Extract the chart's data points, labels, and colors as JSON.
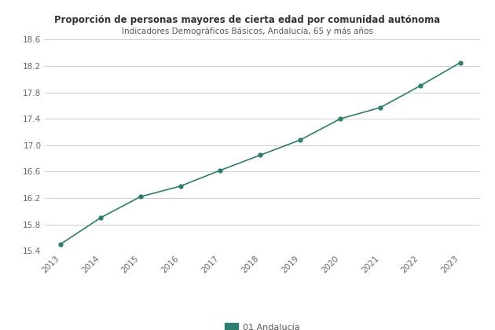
{
  "title": "Proporción de personas mayores de cierta edad por comunidad autónoma",
  "subtitle": "Indicadores Demográficos Básicos, Andalucía, 65 y más años",
  "years": [
    2013,
    2014,
    2015,
    2016,
    2017,
    2018,
    2019,
    2020,
    2021,
    2022,
    2023
  ],
  "values": [
    15.5,
    15.9,
    16.22,
    16.38,
    16.62,
    16.85,
    17.08,
    17.4,
    17.57,
    17.9,
    18.25
  ],
  "line_color": "#2e7d6e",
  "marker_color": "#2e7d6e",
  "legend_label": "01 Andalucía",
  "ylim_min": 15.4,
  "ylim_max": 18.6,
  "yticks": [
    15.4,
    15.8,
    16.2,
    16.6,
    17.0,
    17.4,
    17.8,
    18.2,
    18.6
  ],
  "background_color": "#ffffff",
  "plot_bg_color": "#ffffff",
  "grid_color": "#d0d0d0",
  "title_fontsize": 8.5,
  "subtitle_fontsize": 7.5,
  "tick_fontsize": 7.5,
  "legend_fontsize": 8
}
